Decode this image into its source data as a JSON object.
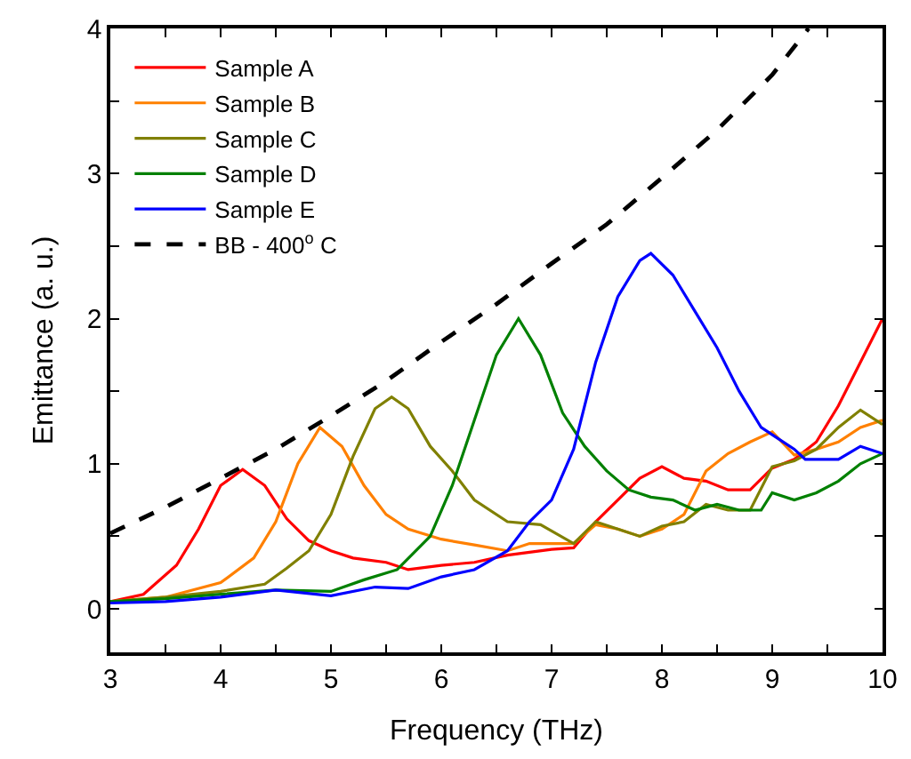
{
  "chart_data": {
    "type": "line",
    "xlabel": "Frequency (THz)",
    "ylabel": "Emittance (a. u.)",
    "xlim": [
      3,
      10
    ],
    "ylim": [
      -0.3,
      4
    ],
    "xticks": [
      3,
      {
        "value": 3.5,
        "label": null
      },
      4,
      {
        "value": 4.5,
        "label": null
      },
      5,
      {
        "value": 5.5,
        "label": null
      },
      6,
      {
        "value": 6.5,
        "label": null
      },
      7,
      {
        "value": 7.5,
        "label": null
      },
      8,
      {
        "value": 8.5,
        "label": null
      },
      9,
      {
        "value": 9.5,
        "label": null
      },
      10
    ],
    "yticks": [
      0,
      {
        "value": 0.5,
        "label": null
      },
      1,
      {
        "value": 1.5,
        "label": null
      },
      2,
      {
        "value": 2.5,
        "label": null
      },
      3,
      {
        "value": 3.5,
        "label": null
      },
      4
    ],
    "legend": "top left",
    "marker": "none",
    "series": [
      {
        "name": "Sample A",
        "color": "#ff0000",
        "x": [
          3,
          3.3,
          3.6,
          3.8,
          4.0,
          4.2,
          4.4,
          4.6,
          4.8,
          5.0,
          5.2,
          5.5,
          5.7,
          6,
          6.3,
          6.6,
          7,
          7.2,
          7.4,
          7.6,
          7.8,
          8,
          8.2,
          8.4,
          8.6,
          8.8,
          9,
          9.2,
          9.4,
          9.6,
          9.8,
          10
        ],
        "values": [
          0.05,
          0.1,
          0.3,
          0.55,
          0.85,
          0.96,
          0.85,
          0.62,
          0.47,
          0.4,
          0.35,
          0.32,
          0.27,
          0.3,
          0.32,
          0.37,
          0.41,
          0.42,
          0.6,
          0.75,
          0.9,
          0.98,
          0.9,
          0.88,
          0.82,
          0.82,
          0.97,
          1.03,
          1.15,
          1.4,
          1.7,
          2.0
        ]
      },
      {
        "name": "Sample B",
        "color": "#ff8000",
        "x": [
          3,
          3.5,
          4,
          4.3,
          4.5,
          4.7,
          4.9,
          5.1,
          5.3,
          5.5,
          5.7,
          6,
          6.3,
          6.6,
          6.8,
          7.2,
          7.4,
          7.6,
          7.8,
          8,
          8.2,
          8.4,
          8.6,
          8.8,
          9,
          9.2,
          9.4,
          9.6,
          9.8,
          10
        ],
        "values": [
          0.05,
          0.08,
          0.18,
          0.35,
          0.6,
          1.0,
          1.25,
          1.12,
          0.85,
          0.65,
          0.55,
          0.48,
          0.44,
          0.4,
          0.45,
          0.45,
          0.58,
          0.55,
          0.5,
          0.55,
          0.65,
          0.95,
          1.07,
          1.15,
          1.22,
          1.06,
          1.1,
          1.15,
          1.25,
          1.3
        ]
      },
      {
        "name": "Sample C",
        "color": "#808000",
        "x": [
          3,
          3.5,
          4,
          4.4,
          4.6,
          4.8,
          5.0,
          5.2,
          5.4,
          5.55,
          5.7,
          5.9,
          6.1,
          6.3,
          6.6,
          6.9,
          7.2,
          7.4,
          7.6,
          7.8,
          8,
          8.2,
          8.4,
          8.6,
          8.8,
          9,
          9.2,
          9.4,
          9.6,
          9.8,
          10
        ],
        "values": [
          0.05,
          0.08,
          0.12,
          0.17,
          0.28,
          0.4,
          0.65,
          1.05,
          1.38,
          1.46,
          1.38,
          1.12,
          0.95,
          0.75,
          0.6,
          0.58,
          0.45,
          0.6,
          0.55,
          0.5,
          0.57,
          0.6,
          0.72,
          0.68,
          0.68,
          0.98,
          1.02,
          1.1,
          1.25,
          1.37,
          1.27
        ]
      },
      {
        "name": "Sample D",
        "color": "#008000",
        "x": [
          3,
          3.5,
          4,
          4.5,
          5,
          5.3,
          5.6,
          5.9,
          6.1,
          6.3,
          6.5,
          6.7,
          6.9,
          7.1,
          7.3,
          7.5,
          7.7,
          7.9,
          8.1,
          8.3,
          8.5,
          8.7,
          8.9,
          9.0,
          9.2,
          9.4,
          9.6,
          9.8,
          10
        ],
        "values": [
          0.05,
          0.07,
          0.1,
          0.13,
          0.12,
          0.2,
          0.27,
          0.5,
          0.85,
          1.3,
          1.75,
          2.0,
          1.75,
          1.35,
          1.12,
          0.95,
          0.82,
          0.77,
          0.75,
          0.68,
          0.72,
          0.68,
          0.68,
          0.8,
          0.75,
          0.8,
          0.88,
          1.0,
          1.07
        ]
      },
      {
        "name": "Sample E",
        "color": "#0000ff",
        "x": [
          3,
          3.5,
          4,
          4.5,
          5,
          5.4,
          5.7,
          6,
          6.3,
          6.6,
          6.8,
          7,
          7.2,
          7.4,
          7.6,
          7.8,
          7.9,
          8.1,
          8.3,
          8.5,
          8.7,
          8.9,
          9.0,
          9.2,
          9.3,
          9.6,
          9.8,
          10
        ],
        "values": [
          0.04,
          0.05,
          0.08,
          0.13,
          0.09,
          0.15,
          0.14,
          0.22,
          0.27,
          0.4,
          0.6,
          0.75,
          1.1,
          1.7,
          2.15,
          2.4,
          2.45,
          2.3,
          2.05,
          1.8,
          1.5,
          1.25,
          1.2,
          1.1,
          1.03,
          1.03,
          1.12,
          1.07
        ]
      },
      {
        "name": "BB - 400$^{o}$ C",
        "color": "#000000",
        "line_style": "dashed",
        "x": [
          3,
          3.5,
          4,
          4.5,
          5,
          5.5,
          6,
          6.5,
          7,
          7.5,
          8,
          8.5,
          9,
          9.33
        ],
        "values": [
          0.52,
          0.7,
          0.9,
          1.1,
          1.33,
          1.57,
          1.84,
          2.1,
          2.38,
          2.65,
          2.97,
          3.3,
          3.68,
          4.0
        ]
      }
    ]
  }
}
